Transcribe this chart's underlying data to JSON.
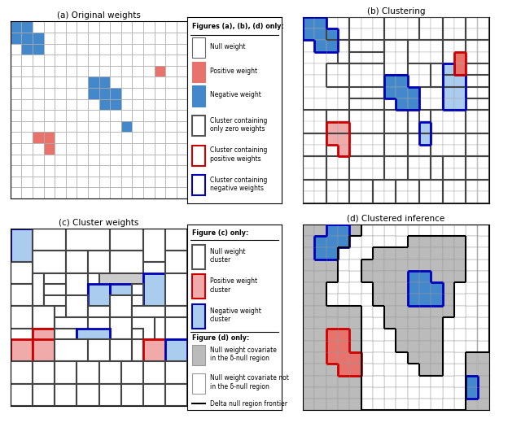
{
  "title_a": "(a) Original weights",
  "title_b": "(b) Clustering",
  "title_c": "(c) Cluster weights",
  "title_d": "(d) Clustered inference",
  "grid_n": 16,
  "pos_color": "#E8736C",
  "neg_color": "#4488CC",
  "null_color": "#FFFFFF",
  "cluster_border_null": "#444444",
  "cluster_border_pos": "#CC0000",
  "cluster_border_neg": "#0000BB",
  "cell_color_light_pos": "#F0AAAA",
  "cell_color_light_neg": "#AACCEE",
  "gray_bg": "#AAAAAA",
  "white": "#FFFFFF"
}
